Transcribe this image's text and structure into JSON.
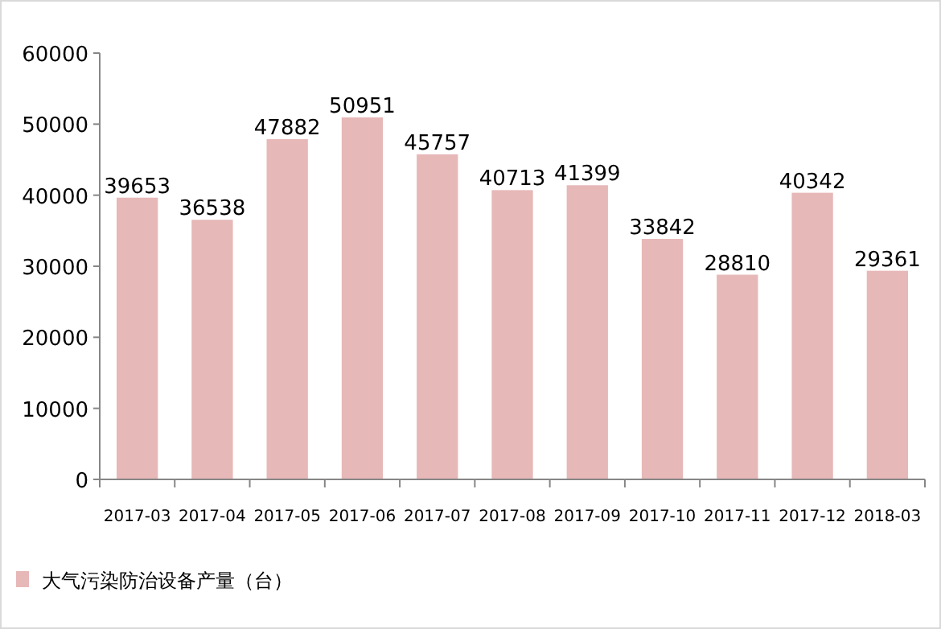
{
  "chart_data": {
    "type": "bar",
    "categories": [
      "2017-03",
      "2017-04",
      "2017-05",
      "2017-06",
      "2017-07",
      "2017-08",
      "2017-09",
      "2017-10",
      "2017-11",
      "2017-12",
      "2018-03"
    ],
    "series": [
      {
        "name": "大气污染防治设备产量（台）",
        "color": "#e6b8b7",
        "values": [
          39653,
          36538,
          47882,
          50951,
          45757,
          40713,
          41399,
          33842,
          28810,
          40342,
          29361
        ]
      }
    ],
    "ylim": [
      0,
      60000
    ],
    "yticks": [
      0,
      10000,
      20000,
      30000,
      40000,
      50000,
      60000
    ],
    "data_labels": true,
    "legend": "bottom left"
  }
}
